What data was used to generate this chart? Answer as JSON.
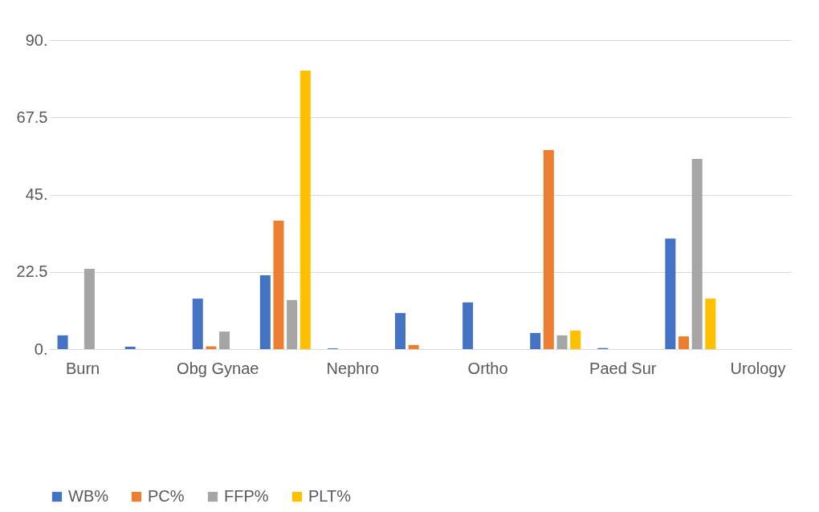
{
  "chart_data": {
    "type": "bar",
    "categories": [
      "Burn",
      null,
      "Obg Gynae",
      null,
      "Nephro",
      null,
      "Ortho",
      null,
      "Paed Sur",
      null,
      "Urology"
    ],
    "series": [
      {
        "name": "WB%",
        "color": "#4472c4",
        "values": [
          4.0,
          0.7,
          14.7,
          21.5,
          0.2,
          10.5,
          13.6,
          4.7,
          0.3,
          32.2,
          0
        ]
      },
      {
        "name": "PC%",
        "color": "#ed7d31",
        "values": [
          0,
          0,
          0.8,
          37.4,
          0,
          1.2,
          0,
          58.0,
          0,
          3.7,
          0
        ]
      },
      {
        "name": "FFP%",
        "color": "#a5a5a5",
        "values": [
          23.4,
          0,
          5.1,
          14.3,
          0,
          0,
          0,
          4.0,
          0,
          55.4,
          0
        ]
      },
      {
        "name": "PLT%",
        "color": "#ffc000",
        "values": [
          0,
          0,
          0,
          81.1,
          0,
          0,
          0,
          5.4,
          0,
          14.7,
          0
        ]
      }
    ],
    "ylim": [
      0,
      90
    ],
    "yticks": [
      {
        "value": 0,
        "label": "0."
      },
      {
        "value": 22.5,
        "label": "22.5"
      },
      {
        "value": 45,
        "label": "45."
      },
      {
        "value": 67.5,
        "label": "67.5"
      },
      {
        "value": 90,
        "label": "90."
      }
    ],
    "grid": "y",
    "legend": "bottom"
  }
}
